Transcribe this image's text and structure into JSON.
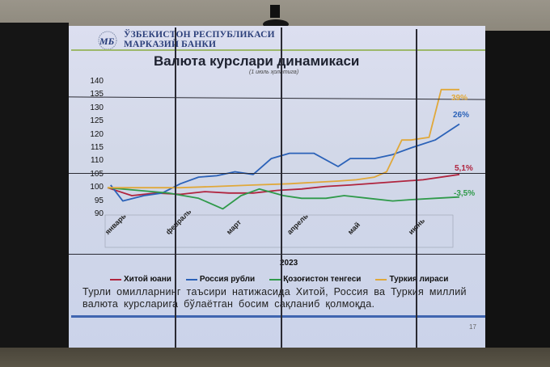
{
  "header": {
    "bank_name_line1": "ЎЗБЕКИСТОН РЕСПУБЛИКАСИ",
    "bank_name_line2": "МАРКАЗИЙ БАНКИ",
    "logo_text": "МБ"
  },
  "slide": {
    "title": "Валюта курслари динамикаси",
    "subtitle": "(1 июль ҳолатига)",
    "description": "Турли омилларнинг таъсири натижасида Хитой, Россия ва Туркия миллий валюта курсларига бўлаётган босим сақланиб қолмоқда.",
    "page_number": "17"
  },
  "chart_data": {
    "type": "line",
    "title": "Валюта курслари динамикаси",
    "subtitle": "(1 июль ҳолатига)",
    "xlabel": "2023",
    "ylabel": "",
    "ylim": [
      90,
      140
    ],
    "yticks": [
      90,
      95,
      100,
      105,
      110,
      115,
      120,
      125,
      130,
      135,
      140
    ],
    "x": [
      "январь",
      "февраль",
      "март",
      "апрель",
      "май",
      "июнь"
    ],
    "x_positions_month_index": [
      0,
      1,
      2,
      3,
      4,
      5,
      5.9
    ],
    "grid": false,
    "legend_position": "bottom",
    "series": [
      {
        "name": "Хитой юани",
        "color": "#b0243e",
        "end_label": "5,1%",
        "values": [
          100,
          97,
          98,
          97.5,
          98.5,
          98,
          98,
          99,
          99.5,
          100.5,
          101,
          102,
          103,
          105
        ],
        "t": [
          0,
          0.4,
          0.8,
          1.2,
          1.6,
          2.0,
          2.4,
          2.8,
          3.2,
          3.6,
          4.0,
          4.6,
          5.2,
          5.8
        ]
      },
      {
        "name": "Россия рубли",
        "color": "#2b62b8",
        "end_label": "26%",
        "values": [
          101,
          95,
          97,
          98,
          101.5,
          104,
          104.5,
          106,
          105,
          111,
          113,
          113,
          108,
          111,
          111,
          112.5,
          115,
          118,
          124
        ],
        "t": [
          0.05,
          0.25,
          0.6,
          0.9,
          1.2,
          1.5,
          1.8,
          2.1,
          2.4,
          2.7,
          3.0,
          3.4,
          3.8,
          4.0,
          4.4,
          4.7,
          5.0,
          5.4,
          5.8
        ]
      },
      {
        "name": "Қозоғистон тенгеси",
        "color": "#2f9a4a",
        "end_label": "-3,5%",
        "values": [
          100,
          99,
          98,
          96,
          92,
          97,
          99.5,
          97,
          96,
          96,
          97,
          96,
          95,
          95.5,
          96,
          96.5
        ],
        "t": [
          0,
          0.5,
          1.0,
          1.5,
          1.9,
          2.2,
          2.5,
          2.9,
          3.2,
          3.6,
          3.9,
          4.3,
          4.7,
          5.0,
          5.4,
          5.8
        ]
      },
      {
        "name": "Туркия лираси",
        "color": "#e0a83a",
        "end_label": "39%",
        "values": [
          100,
          100,
          100,
          100.5,
          101,
          101.5,
          102,
          102.5,
          103,
          104,
          106,
          118,
          118,
          119,
          137,
          137
        ],
        "t": [
          0,
          0.6,
          1.2,
          1.8,
          2.4,
          3.0,
          3.4,
          3.8,
          4.1,
          4.4,
          4.6,
          4.85,
          5.0,
          5.3,
          5.5,
          5.8
        ]
      }
    ]
  },
  "legend": [
    {
      "label": "Хитой юани",
      "color": "#b0243e"
    },
    {
      "label": "Россия рубли",
      "color": "#2b62b8"
    },
    {
      "label": "Қозоғистон тенгеси",
      "color": "#2f9a4a"
    },
    {
      "label": "Туркия лираси",
      "color": "#e0a83a"
    }
  ]
}
